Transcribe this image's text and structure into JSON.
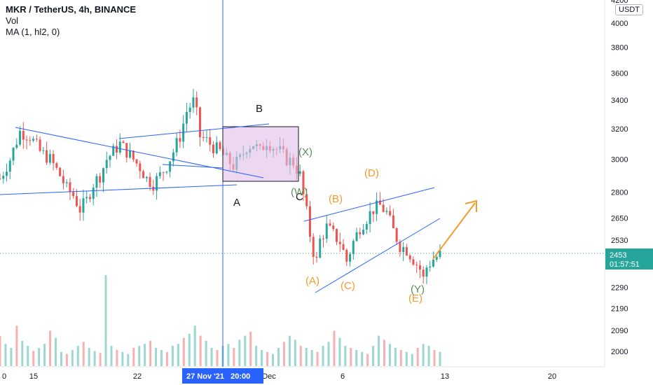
{
  "legend": {
    "symbol": "MKR / TetherUS, 4h, BINANCE",
    "vol": "Vol",
    "ma": "MA (1, hl2, 0)"
  },
  "price_axis": {
    "unit": "USDT",
    "ticks": [
      "4200",
      "4000",
      "3800",
      "3600",
      "3400",
      "3200",
      "3000",
      "2800",
      "2650",
      "2530",
      "2290",
      "2190",
      "2090",
      "2000"
    ],
    "tick_values": [
      4200,
      4000,
      3800,
      3600,
      3400,
      3200,
      3000,
      2800,
      2650,
      2530,
      2290,
      2190,
      2090,
      2000
    ],
    "last_price": "2453",
    "countdown": "01:57:51"
  },
  "time_axis": {
    "ticks": [
      "0",
      "15",
      "22",
      "Dec",
      "6",
      "13",
      "20"
    ],
    "crosshair_label": "27 Nov '21   20:00"
  },
  "wave_labels": [
    {
      "text": "B",
      "color": "#131722"
    },
    {
      "text": "A",
      "color": "#131722"
    },
    {
      "text": "C",
      "color": "#131722"
    },
    {
      "text": "(X)",
      "color": "#5b8f5b"
    },
    {
      "text": "(W)",
      "color": "#5b8f5b"
    },
    {
      "text": "(Y)",
      "color": "#5b8f5b"
    },
    {
      "text": "(A)",
      "color": "#f59b2b"
    },
    {
      "text": "(B)",
      "color": "#f59b2b"
    },
    {
      "text": "(C)",
      "color": "#f59b2b"
    },
    {
      "text": "(D)",
      "color": "#f59b2b"
    },
    {
      "text": "(E)",
      "color": "#f59b2b"
    }
  ],
  "colors": {
    "up": "#26a69a",
    "down": "#ef5350",
    "trendline": "#2962ff",
    "projection": "#f59b2b",
    "box_fill": "#e1bee7",
    "price_tag": "#26a69a"
  },
  "chart_data": {
    "type": "candlestick",
    "title": "MKR / TetherUS, 4h, BINANCE",
    "xlabel": "",
    "ylabel": "",
    "ylim": [
      1950,
      4250
    ],
    "y_scale": "log",
    "grid": false,
    "series": [
      {
        "name": "MKR / TetherUS",
        "close_path": [
          [
            0,
            2880
          ],
          [
            3,
            3000
          ],
          [
            6,
            3180
          ],
          [
            9,
            3150
          ],
          [
            12,
            3050
          ],
          [
            15,
            3000
          ],
          [
            18,
            2900
          ],
          [
            20,
            2820
          ],
          [
            22,
            2780
          ],
          [
            24,
            2700
          ],
          [
            26,
            2750
          ],
          [
            28,
            2850
          ],
          [
            30,
            2900
          ],
          [
            32,
            3000
          ],
          [
            34,
            3050
          ],
          [
            36,
            3100
          ],
          [
            38,
            3050
          ],
          [
            40,
            3000
          ],
          [
            42,
            2950
          ],
          [
            44,
            2880
          ],
          [
            46,
            2850
          ],
          [
            48,
            2900
          ],
          [
            50,
            2960
          ],
          [
            52,
            3050
          ],
          [
            54,
            3150
          ],
          [
            56,
            3320
          ],
          [
            58,
            3390
          ],
          [
            59,
            3300
          ],
          [
            60,
            3150
          ],
          [
            62,
            3120
          ],
          [
            64,
            3080
          ],
          [
            66,
            3050
          ],
          [
            68,
            3000
          ],
          [
            70,
            2960
          ],
          [
            72,
            3000
          ],
          [
            74,
            3080
          ],
          [
            76,
            3100
          ],
          [
            78,
            3050
          ],
          [
            80,
            3120
          ],
          [
            82,
            3080
          ],
          [
            84,
            3050
          ],
          [
            86,
            3000
          ],
          [
            88,
            2980
          ],
          [
            90,
            2900
          ],
          [
            91,
            2780
          ],
          [
            92,
            2680
          ],
          [
            93,
            2560
          ],
          [
            94,
            2470
          ],
          [
            95,
            2420
          ],
          [
            96,
            2530
          ],
          [
            98,
            2600
          ],
          [
            100,
            2560
          ],
          [
            102,
            2520
          ],
          [
            104,
            2420
          ],
          [
            106,
            2520
          ],
          [
            108,
            2600
          ],
          [
            110,
            2650
          ],
          [
            112,
            2700
          ],
          [
            114,
            2720
          ],
          [
            116,
            2680
          ],
          [
            118,
            2580
          ],
          [
            120,
            2500
          ],
          [
            122,
            2480
          ],
          [
            124,
            2430
          ],
          [
            126,
            2380
          ],
          [
            127,
            2330
          ],
          [
            128,
            2390
          ],
          [
            130,
            2430
          ],
          [
            132,
            2453
          ]
        ]
      },
      {
        "name": "Vol",
        "values": [
          30,
          22,
          18,
          40,
          25,
          20,
          15,
          18,
          22,
          35,
          28,
          14,
          12,
          16,
          20,
          24,
          18,
          15,
          13,
          90,
          20,
          16,
          14,
          12,
          18,
          20,
          22,
          25,
          18,
          16,
          14,
          20,
          22,
          28,
          32,
          40,
          30,
          25,
          18,
          16,
          20,
          22,
          18,
          26,
          30,
          34,
          20,
          16,
          14,
          12,
          18,
          24,
          30,
          26,
          20,
          18,
          16,
          14,
          20,
          24,
          35,
          28,
          20,
          18,
          16,
          14,
          12,
          20,
          30,
          26,
          22,
          18,
          16,
          14,
          12,
          18,
          22,
          20,
          16,
          14
        ]
      }
    ],
    "annotations": [
      "B",
      "A",
      "C",
      "(X)",
      "(W)",
      "(Y)",
      "(A)",
      "(B)",
      "(C)",
      "(D)",
      "(E)"
    ]
  }
}
